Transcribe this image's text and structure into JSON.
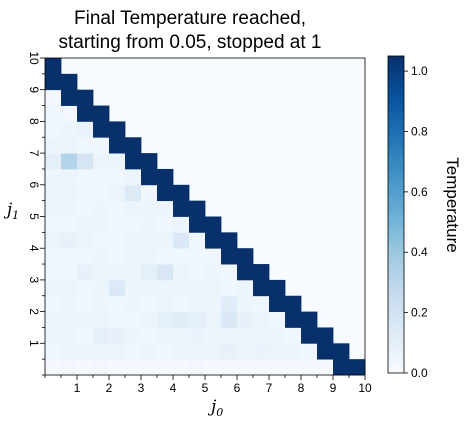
{
  "chart_data": {
    "type": "heatmap",
    "title_lines": [
      "Final Temperature reached,",
      "starting from 0.05, stopped at 1"
    ],
    "xlabel_base": "j",
    "xlabel_sub": "0",
    "ylabel_base": "j",
    "ylabel_sub": "1",
    "xlim": [
      0,
      10
    ],
    "ylim": [
      0,
      10
    ],
    "grid_step": 0.5,
    "x_ticks": [
      "1",
      "2",
      "3",
      "4",
      "5",
      "6",
      "7",
      "8",
      "9",
      "10"
    ],
    "y_ticks": [
      "1",
      "2",
      "3",
      "4",
      "5",
      "6",
      "7",
      "8",
      "9",
      "10"
    ],
    "colorbar": {
      "label": "Temperature",
      "range": [
        0.0,
        1.05
      ],
      "ticks": [
        "0.0",
        "0.2",
        "0.4",
        "0.6",
        "0.8",
        "1.0"
      ],
      "colormap": "Blues",
      "low_color": "#f7fbff",
      "high_color": "#08306b"
    },
    "diagonal_value": 1.05,
    "values_note": "cells at or above the diagonal band are white (0.0)",
    "lower_values": [
      [
        0.02,
        0.03,
        0.02,
        0.03,
        0.02,
        0.02,
        0.02,
        0.02,
        0.02,
        0.03,
        0.02,
        0.02,
        0.02,
        0.02,
        0.02,
        0.02,
        0.02,
        0.02
      ],
      [
        0.04,
        0.05,
        0.05,
        0.06,
        0.06,
        0.04,
        0.05,
        0.04,
        0.05,
        0.06,
        0.06,
        0.08,
        0.06,
        0.07,
        0.06,
        0.05,
        0.04
      ],
      [
        0.06,
        0.05,
        0.04,
        0.1,
        0.08,
        0.05,
        0.04,
        0.06,
        0.06,
        0.07,
        0.05,
        0.06,
        0.06,
        0.06,
        0.05,
        0.04
      ],
      [
        0.05,
        0.06,
        0.05,
        0.06,
        0.04,
        0.04,
        0.06,
        0.1,
        0.12,
        0.1,
        0.06,
        0.15,
        0.08,
        0.06,
        0.04
      ],
      [
        0.04,
        0.05,
        0.04,
        0.05,
        0.04,
        0.05,
        0.04,
        0.06,
        0.04,
        0.06,
        0.05,
        0.12,
        0.05,
        0.04
      ],
      [
        0.05,
        0.06,
        0.04,
        0.05,
        0.15,
        0.05,
        0.06,
        0.05,
        0.05,
        0.06,
        0.06,
        0.04,
        0.05
      ],
      [
        0.04,
        0.04,
        0.08,
        0.05,
        0.06,
        0.05,
        0.1,
        0.16,
        0.06,
        0.04,
        0.05,
        0.04
      ],
      [
        0.04,
        0.04,
        0.04,
        0.05,
        0.04,
        0.05,
        0.05,
        0.04,
        0.04,
        0.04,
        0.04
      ],
      [
        0.06,
        0.08,
        0.06,
        0.04,
        0.04,
        0.05,
        0.06,
        0.05,
        0.15,
        0.04
      ],
      [
        0.04,
        0.04,
        0.06,
        0.05,
        0.04,
        0.04,
        0.05,
        0.04,
        0.05
      ],
      [
        0.05,
        0.05,
        0.04,
        0.05,
        0.04,
        0.06,
        0.05,
        0.05
      ],
      [
        0.06,
        0.06,
        0.04,
        0.04,
        0.06,
        0.14,
        0.04
      ],
      [
        0.05,
        0.05,
        0.04,
        0.04,
        0.04,
        0.05
      ],
      [
        0.1,
        0.32,
        0.18,
        0.06,
        0.05
      ],
      [
        0.06,
        0.06,
        0.04,
        0.04
      ],
      [
        0.04,
        0.05,
        0.07
      ],
      [
        0.04,
        0.03
      ],
      [
        0.03
      ]
    ]
  }
}
